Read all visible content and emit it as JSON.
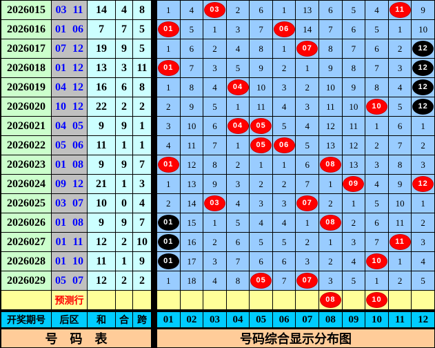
{
  "colors": {
    "period_bg": "#ccffcc",
    "backzone_bg": "#c0c0c0",
    "stats_bg": "#ccffff",
    "grid_bg": "#99ccff",
    "prediction_bg": "#ffff99",
    "header_bg": "#00ccff",
    "footer_bg": "#ffcc99",
    "ball_red": "#ff0000",
    "ball_black": "#000000",
    "backzone_text": "#0000ff",
    "prediction_text": "#ff0000"
  },
  "chart_data": {
    "type": "table",
    "title": "号码综合显示分布图",
    "header": {
      "period": "开奖期号",
      "back": "后区",
      "sum": "和",
      "he": "合",
      "kua": "跨",
      "numbers": [
        "01",
        "02",
        "03",
        "04",
        "05",
        "06",
        "07",
        "08",
        "09",
        "10",
        "11",
        "12"
      ]
    },
    "rows": [
      {
        "period": "2026015",
        "back": "03 11",
        "sum": "14",
        "he": "4",
        "kua": "8",
        "cells": [
          "1",
          "4",
          {
            "ball": "03",
            "color": "red"
          },
          "2",
          "6",
          "1",
          "13",
          "6",
          "5",
          "4",
          {
            "ball": "11",
            "color": "red"
          },
          "9"
        ]
      },
      {
        "period": "2026016",
        "back": "01 06",
        "sum": "7",
        "he": "7",
        "kua": "5",
        "cells": [
          {
            "ball": "01",
            "color": "red"
          },
          "5",
          "1",
          "3",
          "7",
          {
            "ball": "06",
            "color": "red"
          },
          "14",
          "7",
          "6",
          "5",
          "1",
          "10"
        ]
      },
      {
        "period": "2026017",
        "back": "07 12",
        "sum": "19",
        "he": "9",
        "kua": "5",
        "cells": [
          "1",
          "6",
          "2",
          "4",
          "8",
          "1",
          {
            "ball": "07",
            "color": "red"
          },
          "8",
          "7",
          "6",
          "2",
          {
            "ball": "12",
            "color": "black"
          }
        ]
      },
      {
        "period": "2026018",
        "back": "01 12",
        "sum": "13",
        "he": "3",
        "kua": "11",
        "cells": [
          {
            "ball": "01",
            "color": "red"
          },
          "7",
          "3",
          "5",
          "9",
          "2",
          "1",
          "9",
          "8",
          "7",
          "3",
          {
            "ball": "12",
            "color": "black"
          }
        ]
      },
      {
        "period": "2026019",
        "back": "04 12",
        "sum": "16",
        "he": "6",
        "kua": "8",
        "cells": [
          "1",
          "8",
          "4",
          {
            "ball": "04",
            "color": "red"
          },
          "10",
          "3",
          "2",
          "10",
          "9",
          "8",
          "4",
          {
            "ball": "12",
            "color": "black"
          }
        ]
      },
      {
        "period": "2026020",
        "back": "10 12",
        "sum": "22",
        "he": "2",
        "kua": "2",
        "cells": [
          "2",
          "9",
          "5",
          "1",
          "11",
          "4",
          "3",
          "11",
          "10",
          {
            "ball": "10",
            "color": "red"
          },
          "5",
          {
            "ball": "12",
            "color": "black"
          }
        ]
      },
      {
        "period": "2026021",
        "back": "04 05",
        "sum": "9",
        "he": "9",
        "kua": "1",
        "cells": [
          "3",
          "10",
          "6",
          {
            "ball": "04",
            "color": "red"
          },
          {
            "ball": "05",
            "color": "red"
          },
          "5",
          "4",
          "12",
          "11",
          "1",
          "6",
          "1"
        ]
      },
      {
        "period": "2026022",
        "back": "05 06",
        "sum": "11",
        "he": "1",
        "kua": "1",
        "cells": [
          "4",
          "11",
          "7",
          "1",
          {
            "ball": "05",
            "color": "red"
          },
          {
            "ball": "06",
            "color": "red"
          },
          "5",
          "13",
          "12",
          "2",
          "7",
          "2"
        ]
      },
      {
        "period": "2026023",
        "back": "01 08",
        "sum": "9",
        "he": "9",
        "kua": "7",
        "cells": [
          {
            "ball": "01",
            "color": "red"
          },
          "12",
          "8",
          "2",
          "1",
          "1",
          "6",
          {
            "ball": "08",
            "color": "red"
          },
          "13",
          "3",
          "8",
          "3"
        ]
      },
      {
        "period": "2026024",
        "back": "09 12",
        "sum": "21",
        "he": "1",
        "kua": "3",
        "cells": [
          "1",
          "13",
          "9",
          "3",
          "2",
          "2",
          "7",
          "1",
          {
            "ball": "09",
            "color": "red"
          },
          "4",
          "9",
          {
            "ball": "12",
            "color": "red"
          }
        ]
      },
      {
        "period": "2026025",
        "back": "03 07",
        "sum": "10",
        "he": "0",
        "kua": "4",
        "cells": [
          "2",
          "14",
          {
            "ball": "03",
            "color": "red"
          },
          "4",
          "3",
          "3",
          {
            "ball": "07",
            "color": "red"
          },
          "2",
          "1",
          "5",
          "10",
          "1"
        ]
      },
      {
        "period": "2026026",
        "back": "01 08",
        "sum": "9",
        "he": "9",
        "kua": "7",
        "cells": [
          {
            "ball": "01",
            "color": "black"
          },
          "15",
          "1",
          "5",
          "4",
          "4",
          "1",
          {
            "ball": "08",
            "color": "red"
          },
          "2",
          "6",
          "11",
          "2"
        ]
      },
      {
        "period": "2026027",
        "back": "01 11",
        "sum": "12",
        "he": "2",
        "kua": "10",
        "cells": [
          {
            "ball": "01",
            "color": "black"
          },
          "16",
          "2",
          "6",
          "5",
          "5",
          "2",
          "1",
          "3",
          "7",
          {
            "ball": "11",
            "color": "red"
          },
          "3"
        ]
      },
      {
        "period": "2026028",
        "back": "01 10",
        "sum": "11",
        "he": "1",
        "kua": "9",
        "cells": [
          {
            "ball": "01",
            "color": "black"
          },
          "17",
          "3",
          "7",
          "6",
          "6",
          "3",
          "2",
          "4",
          {
            "ball": "10",
            "color": "red"
          },
          "1",
          "4"
        ]
      },
      {
        "period": "2026029",
        "back": "05 07",
        "sum": "12",
        "he": "2",
        "kua": "2",
        "cells": [
          "1",
          "18",
          "4",
          "8",
          {
            "ball": "05",
            "color": "red"
          },
          "7",
          {
            "ball": "07",
            "color": "red"
          },
          "3",
          "5",
          "1",
          "2",
          "5"
        ]
      }
    ],
    "prediction": {
      "label": "预测行",
      "cells": [
        "",
        "",
        "",
        "",
        "",
        "",
        "",
        {
          "ball": "08",
          "color": "red"
        },
        "",
        {
          "ball": "10",
          "color": "red"
        },
        "",
        ""
      ]
    },
    "footer": {
      "left": "号　码　表",
      "right": "号码综合显示分布图"
    }
  }
}
